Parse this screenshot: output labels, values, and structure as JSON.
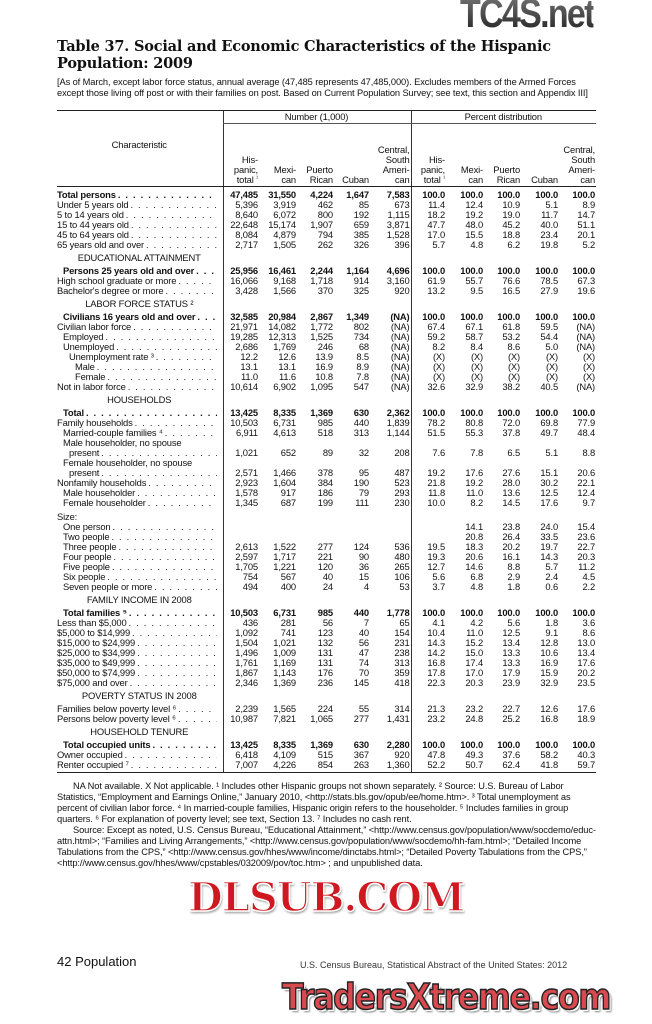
{
  "title": "Table 37. Social and Economic Characteristics of the Hispanic Population: 2009",
  "intro": "[As of March, except labor force status, annual average (47,485 represents 47,485,000). Excludes members of the Armed Forces except those living off post or with their families on post. Based on Current Population Survey; see text, this section and Appendix III]",
  "header": {
    "characteristic": "Characteristic",
    "number_group": "Number (1,000)",
    "percent_group": "Percent distribution",
    "columns": [
      "His-\npanic,\ntotal ¹",
      "Mexi-\ncan",
      "Puerto\nRican",
      "Cuban",
      "Central,\nSouth\nAmeri-\ncan"
    ]
  },
  "rows": [
    {
      "label": "Total persons",
      "bold": true,
      "indent": 0,
      "n": [
        "47,485",
        "31,550",
        "4,224",
        "1,647",
        "7,583"
      ],
      "p": [
        "100.0",
        "100.0",
        "100.0",
        "100.0",
        "100.0"
      ]
    },
    {
      "label": "Under 5 years old",
      "indent": 0,
      "n": [
        "5,396",
        "3,919",
        "462",
        "85",
        "673"
      ],
      "p": [
        "11.4",
        "12.4",
        "10.9",
        "5.1",
        "8.9"
      ]
    },
    {
      "label": "5 to 14 years old",
      "indent": 0,
      "n": [
        "8,640",
        "6,072",
        "800",
        "192",
        "1,115"
      ],
      "p": [
        "18.2",
        "19.2",
        "19.0",
        "11.7",
        "14.7"
      ]
    },
    {
      "label": "15 to 44 years old",
      "indent": 0,
      "n": [
        "22,648",
        "15,174",
        "1,907",
        "659",
        "3,871"
      ],
      "p": [
        "47.7",
        "48.0",
        "45.2",
        "40.0",
        "51.1"
      ]
    },
    {
      "label": "45 to 64 years old",
      "indent": 0,
      "n": [
        "8,084",
        "4,879",
        "794",
        "385",
        "1,528"
      ],
      "p": [
        "17.0",
        "15.5",
        "18.8",
        "23.4",
        "20.1"
      ]
    },
    {
      "label": "65 years old and over",
      "indent": 0,
      "n": [
        "2,717",
        "1,505",
        "262",
        "326",
        "396"
      ],
      "p": [
        "5.7",
        "4.8",
        "6.2",
        "19.8",
        "5.2"
      ]
    },
    {
      "section": "EDUCATIONAL ATTAINMENT"
    },
    {
      "label": "Persons 25 years old and over",
      "bold": true,
      "indent": 1,
      "n": [
        "25,956",
        "16,461",
        "2,244",
        "1,164",
        "4,696"
      ],
      "p": [
        "100.0",
        "100.0",
        "100.0",
        "100.0",
        "100.0"
      ]
    },
    {
      "label": "High school graduate or more",
      "indent": 0,
      "n": [
        "16,066",
        "9,168",
        "1,718",
        "914",
        "3,160"
      ],
      "p": [
        "61.9",
        "55.7",
        "76.6",
        "78.5",
        "67.3"
      ]
    },
    {
      "label": "Bachelor's degree or more",
      "indent": 0,
      "n": [
        "3,428",
        "1,566",
        "370",
        "325",
        "920"
      ],
      "p": [
        "13.2",
        "9.5",
        "16.5",
        "27.9",
        "19.6"
      ]
    },
    {
      "section": "LABOR FORCE STATUS ²"
    },
    {
      "label": "Civilians 16 years old and over",
      "bold": true,
      "indent": 1,
      "n": [
        "32,585",
        "20,984",
        "2,867",
        "1,349",
        "(NA)"
      ],
      "p": [
        "100.0",
        "100.0",
        "100.0",
        "100.0",
        "100.0"
      ]
    },
    {
      "label": "Civilian labor force",
      "indent": 0,
      "n": [
        "21,971",
        "14,082",
        "1,772",
        "802",
        "(NA)"
      ],
      "p": [
        "67.4",
        "67.1",
        "61.8",
        "59.5",
        "(NA)"
      ]
    },
    {
      "label": "Employed",
      "indent": 1,
      "n": [
        "19,285",
        "12,313",
        "1,525",
        "734",
        "(NA)"
      ],
      "p": [
        "59.2",
        "58.7",
        "53.2",
        "54.4",
        "(NA)"
      ]
    },
    {
      "label": "Unemployed",
      "indent": 1,
      "n": [
        "2,686",
        "1,769",
        "246",
        "68",
        "(NA)"
      ],
      "p": [
        "8.2",
        "8.4",
        "8.6",
        "5.0",
        "(NA)"
      ]
    },
    {
      "label": "Unemployment rate ³",
      "indent": 2,
      "n": [
        "12.2",
        "12.6",
        "13.9",
        "8.5",
        "(NA)"
      ],
      "p": [
        "(X)",
        "(X)",
        "(X)",
        "(X)",
        "(X)"
      ]
    },
    {
      "label": "Male",
      "indent": 3,
      "n": [
        "13.1",
        "13.1",
        "16.9",
        "8.9",
        "(NA)"
      ],
      "p": [
        "(X)",
        "(X)",
        "(X)",
        "(X)",
        "(X)"
      ]
    },
    {
      "label": "Female",
      "indent": 3,
      "n": [
        "11.0",
        "11.6",
        "10.8",
        "7.8",
        "(NA)"
      ],
      "p": [
        "(X)",
        "(X)",
        "(X)",
        "(X)",
        "(X)"
      ]
    },
    {
      "label": "Not in labor force",
      "indent": 0,
      "n": [
        "10,614",
        "6,902",
        "1,095",
        "547",
        "(NA)"
      ],
      "p": [
        "32.6",
        "32.9",
        "38.2",
        "40.5",
        "(NA)"
      ]
    },
    {
      "section": "HOUSEHOLDS"
    },
    {
      "label": "Total",
      "bold": true,
      "indent": 1,
      "n": [
        "13,425",
        "8,335",
        "1,369",
        "630",
        "2,362"
      ],
      "p": [
        "100.0",
        "100.0",
        "100.0",
        "100.0",
        "100.0"
      ]
    },
    {
      "label": "Family households",
      "indent": 0,
      "n": [
        "10,503",
        "6,731",
        "985",
        "440",
        "1,839"
      ],
      "p": [
        "78.2",
        "80.8",
        "72.0",
        "69.8",
        "77.9"
      ]
    },
    {
      "label": "Married-couple families ⁴",
      "indent": 1,
      "n": [
        "6,911",
        "4,613",
        "518",
        "313",
        "1,144"
      ],
      "p": [
        "51.5",
        "55.3",
        "37.8",
        "49.7",
        "48.4"
      ]
    },
    {
      "label": "Male householder, no spouse",
      "indent": 1,
      "nodots": true
    },
    {
      "label": "present",
      "indent": 2,
      "n": [
        "1,021",
        "652",
        "89",
        "32",
        "208"
      ],
      "p": [
        "7.6",
        "7.8",
        "6.5",
        "5.1",
        "8.8"
      ]
    },
    {
      "label": "Female householder, no spouse",
      "indent": 1,
      "nodots": true
    },
    {
      "label": "present",
      "indent": 2,
      "n": [
        "2,571",
        "1,466",
        "378",
        "95",
        "487"
      ],
      "p": [
        "19.2",
        "17.6",
        "27.6",
        "15.1",
        "20.6"
      ]
    },
    {
      "label": "Nonfamily households",
      "indent": 0,
      "n": [
        "2,923",
        "1,604",
        "384",
        "190",
        "523"
      ],
      "p": [
        "21.8",
        "19.2",
        "28.0",
        "30.2",
        "22.1"
      ]
    },
    {
      "label": "Male householder",
      "indent": 1,
      "n": [
        "1,578",
        "917",
        "186",
        "79",
        "293"
      ],
      "p": [
        "11.8",
        "11.0",
        "13.6",
        "12.5",
        "12.4"
      ]
    },
    {
      "label": "Female householder",
      "indent": 1,
      "n": [
        "1,345",
        "687",
        "199",
        "111",
        "230"
      ],
      "p": [
        "10.0",
        "8.2",
        "14.5",
        "17.6",
        "9.7"
      ]
    },
    {
      "gap": true
    },
    {
      "label": "Size:",
      "indent": 0,
      "nodots": true
    },
    {
      "label": "One person",
      "indent": 1,
      "n": [
        "",
        "",
        "",
        "",
        ""
      ],
      "p": [
        "",
        "14.1",
        "23.8",
        "24.0",
        "15.4"
      ]
    },
    {
      "label": "Two people",
      "indent": 1,
      "n": [
        "",
        "",
        "",
        "",
        ""
      ],
      "p": [
        "",
        "20.8",
        "26.4",
        "33.5",
        "23.6"
      ]
    },
    {
      "label": "Three people",
      "indent": 1,
      "n": [
        "2,613",
        "1,522",
        "277",
        "124",
        "536"
      ],
      "p": [
        "19.5",
        "18.3",
        "20.2",
        "19.7",
        "22.7"
      ]
    },
    {
      "label": "Four people",
      "indent": 1,
      "n": [
        "2,597",
        "1,717",
        "221",
        "90",
        "480"
      ],
      "p": [
        "19.3",
        "20.6",
        "16.1",
        "14.3",
        "20.3"
      ]
    },
    {
      "label": "Five people",
      "indent": 1,
      "n": [
        "1,705",
        "1,221",
        "120",
        "36",
        "265"
      ],
      "p": [
        "12.7",
        "14.6",
        "8.8",
        "5.7",
        "11.2"
      ]
    },
    {
      "label": "Six people",
      "indent": 1,
      "n": [
        "754",
        "567",
        "40",
        "15",
        "106"
      ],
      "p": [
        "5.6",
        "6.8",
        "2.9",
        "2.4",
        "4.5"
      ]
    },
    {
      "label": "Seven people or more",
      "indent": 1,
      "n": [
        "494",
        "400",
        "24",
        "4",
        "53"
      ],
      "p": [
        "3.7",
        "4.8",
        "1.8",
        "0.6",
        "2.2"
      ]
    },
    {
      "section": "FAMILY INCOME IN 2008"
    },
    {
      "label": "Total families ⁵",
      "bold": true,
      "indent": 1,
      "n": [
        "10,503",
        "6,731",
        "985",
        "440",
        "1,778"
      ],
      "p": [
        "100.0",
        "100.0",
        "100.0",
        "100.0",
        "100.0"
      ]
    },
    {
      "label": "Less than $5,000",
      "indent": 0,
      "n": [
        "436",
        "281",
        "56",
        "7",
        "65"
      ],
      "p": [
        "4.1",
        "4.2",
        "5.6",
        "1.8",
        "3.6"
      ]
    },
    {
      "label": "$5,000 to $14,999",
      "indent": 0,
      "n": [
        "1,092",
        "741",
        "123",
        "40",
        "154"
      ],
      "p": [
        "10.4",
        "11.0",
        "12.5",
        "9.1",
        "8.6"
      ]
    },
    {
      "label": "$15,000 to $24,999",
      "indent": 0,
      "n": [
        "1,504",
        "1,021",
        "132",
        "56",
        "231"
      ],
      "p": [
        "14.3",
        "15.2",
        "13.4",
        "12.8",
        "13.0"
      ]
    },
    {
      "label": "$25,000 to $34,999",
      "indent": 0,
      "n": [
        "1,496",
        "1,009",
        "131",
        "47",
        "238"
      ],
      "p": [
        "14.2",
        "15.0",
        "13.3",
        "10.6",
        "13.4"
      ]
    },
    {
      "label": "$35,000 to $49,999",
      "indent": 0,
      "n": [
        "1,761",
        "1,169",
        "131",
        "74",
        "313"
      ],
      "p": [
        "16.8",
        "17.4",
        "13.3",
        "16.9",
        "17.6"
      ]
    },
    {
      "label": "$50,000 to $74,999",
      "indent": 0,
      "n": [
        "1,867",
        "1,143",
        "176",
        "70",
        "359"
      ],
      "p": [
        "17.8",
        "17.0",
        "17.9",
        "15.9",
        "20.2"
      ]
    },
    {
      "label": "$75,000 and over",
      "indent": 0,
      "n": [
        "2,346",
        "1,369",
        "236",
        "145",
        "418"
      ],
      "p": [
        "22.3",
        "20.3",
        "23.9",
        "32.9",
        "23.5"
      ]
    },
    {
      "section": "POVERTY STATUS IN 2008"
    },
    {
      "label": "Families below poverty level ⁶",
      "indent": 0,
      "n": [
        "2,239",
        "1,565",
        "224",
        "55",
        "314"
      ],
      "p": [
        "21.3",
        "23.2",
        "22.7",
        "12.6",
        "17.6"
      ]
    },
    {
      "label": "Persons below poverty level ⁶",
      "indent": 0,
      "n": [
        "10,987",
        "7,821",
        "1,065",
        "277",
        "1,431"
      ],
      "p": [
        "23.2",
        "24.8",
        "25.2",
        "16.8",
        "18.9"
      ]
    },
    {
      "section": "HOUSEHOLD TENURE"
    },
    {
      "label": "Total occupied units",
      "bold": true,
      "indent": 1,
      "n": [
        "13,425",
        "8,335",
        "1,369",
        "630",
        "2,280"
      ],
      "p": [
        "100.0",
        "100.0",
        "100.0",
        "100.0",
        "100.0"
      ]
    },
    {
      "label": "Owner occupied",
      "indent": 0,
      "n": [
        "6,418",
        "4,109",
        "515",
        "367",
        "920"
      ],
      "p": [
        "47.8",
        "49.3",
        "37.6",
        "58.2",
        "40.3"
      ]
    },
    {
      "label": "Renter occupied ⁷",
      "indent": 0,
      "n": [
        "7,007",
        "4,226",
        "854",
        "263",
        "1,360"
      ],
      "p": [
        "52.2",
        "50.7",
        "62.4",
        "41.8",
        "59.7"
      ]
    }
  ],
  "footnotes": [
    "NA Not available. X Not applicable. ¹ Includes other Hispanic groups not shown separately. ² Source: U.S. Bureau of Labor Statistics, “Employment and Earnings Online,” January 2010, <http://stats.bls.gov/opub/ee/home.htm>. ³ Total unemployment as percent of civilian labor force. ⁴ In married-couple families, Hispanic origin refers to the householder. ⁵ Includes families in group quarters. ⁶ For explanation of poverty level; see text, Section 13. ⁷ Includes no cash rent.",
    "Source: Except as noted, U.S. Census Bureau, “Educational Attainment,” <http://www.census.gov/population/www/socdemo/educ-attn.html>; “Families and Living Arrangements,” <http://www.census.gov/population/www/socdemo/hh-fam.html>; “Detailed Income Tabulations from the CPS,” <http://www.census.gov/hhes/www/income/dinctabs.html>; “Detailed Poverty Tabulations from the CPS,” <http://www.census.gov/hhes/www/cpstables/032009/pov/toc.htm> ; and unpublished data."
  ],
  "footer": {
    "folio": "42  Population",
    "credit": "U.S. Census Bureau, Statistical Abstract of the United States: 2012"
  },
  "watermarks": {
    "top": "TC4S.net",
    "middle": "DLSUB.COM",
    "bottom": "TradersXtreme.com"
  }
}
